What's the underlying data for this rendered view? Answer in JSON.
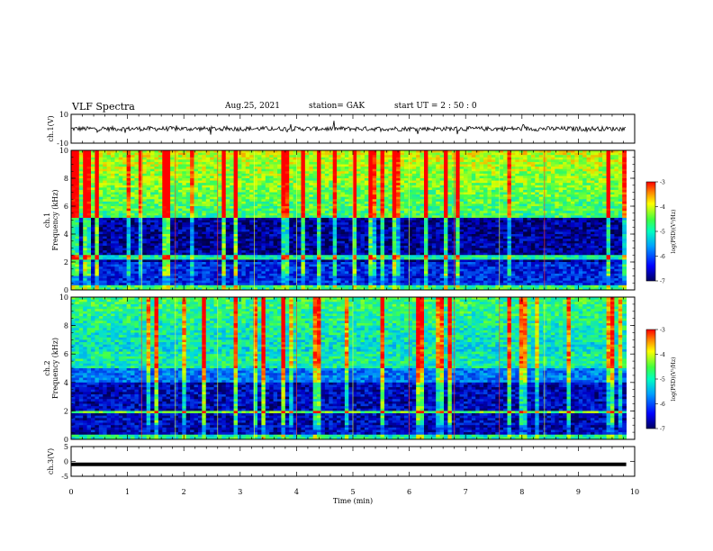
{
  "header": {
    "title": "VLF Spectra",
    "date": "Aug.25, 2021",
    "station": "station= GAK",
    "start": "start  UT =   2  : 50 : 0"
  },
  "chart_data": [
    {
      "type": "line",
      "panel": "ch1-waveform",
      "ylabel": "ch.1(V)",
      "ylim": [
        -10,
        10
      ],
      "yticks": [
        "10",
        "-10"
      ],
      "xlim": [
        0,
        10
      ],
      "description_series": "waveform amplitude approximately 0 V with noise of about +/-2 V and occasional spikes"
    },
    {
      "type": "heatmap",
      "panel": "ch1-spectrogram",
      "ylabel": "ch.1\nFrequency (kHz)",
      "ylim": [
        0,
        10
      ],
      "yticks": [
        "0",
        "2",
        "4",
        "6",
        "8",
        "10"
      ],
      "xlim": [
        0,
        9.85
      ],
      "colorbar": {
        "label": "log(PSD)(V²/Hz)",
        "range": [
          -7,
          -3
        ],
        "ticks": [
          "-3",
          "-4",
          "-5",
          "-6",
          "-7"
        ]
      }
    },
    {
      "type": "heatmap",
      "panel": "ch2-spectrogram",
      "ylabel": "ch.2\nFrequency (kHz)",
      "ylim": [
        0,
        10
      ],
      "yticks": [
        "0",
        "2",
        "4",
        "6",
        "8",
        "10"
      ],
      "xlim": [
        0,
        9.85
      ],
      "colorbar": {
        "label": "log(PSD)(V²/Hz)",
        "range": [
          -7,
          -3
        ],
        "ticks": [
          "-3",
          "-4",
          "-5",
          "-6",
          "-7"
        ]
      }
    },
    {
      "type": "line",
      "panel": "ch3-waveform",
      "ylabel": "ch.3(V)",
      "ylim": [
        -5,
        5
      ],
      "yticks": [
        "5",
        "0",
        "-5"
      ],
      "xlim": [
        0,
        10
      ],
      "series": [
        {
          "values": [
            -1.0,
            -1.0
          ]
        }
      ]
    }
  ],
  "xaxis": {
    "label": "Time  (min)",
    "ticks": [
      "0",
      "1",
      "2",
      "3",
      "4",
      "5",
      "6",
      "7",
      "8",
      "9",
      "10"
    ]
  },
  "colors": {
    "background": "#000033",
    "low": "#000080",
    "mid": "#00c0ff",
    "high": "#40ff40",
    "peak": "#ff2000"
  }
}
